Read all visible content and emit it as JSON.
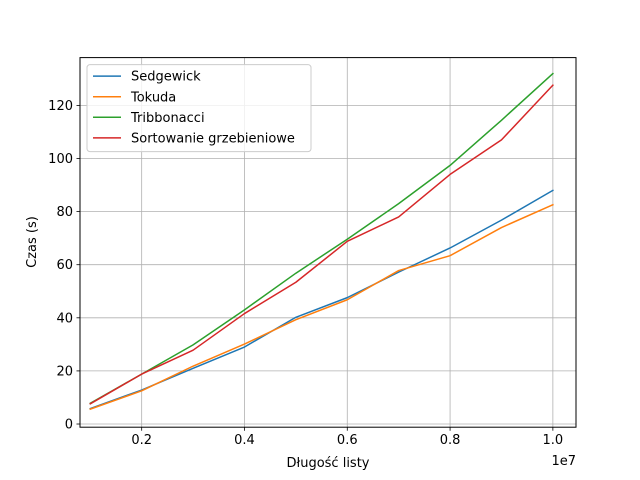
{
  "chart_data": {
    "type": "line",
    "xlabel": "Długość listy",
    "ylabel": "Czas (s)",
    "x_offset_label": "1e7",
    "xlim": [
      0.08,
      1.045
    ],
    "ylim": [
      -1.2,
      138
    ],
    "x_ticks": [
      0.2,
      0.4,
      0.6,
      0.8,
      1.0
    ],
    "x_tick_labels": [
      "0.2",
      "0.4",
      "0.6",
      "0.8",
      "1.0"
    ],
    "y_ticks": [
      0,
      20,
      40,
      60,
      80,
      100,
      120
    ],
    "y_tick_labels": [
      "0",
      "20",
      "40",
      "60",
      "80",
      "100",
      "120"
    ],
    "grid": true,
    "legend_position": "top-left",
    "x": [
      0.1,
      0.2,
      0.3,
      0.4,
      0.5,
      0.6,
      0.7,
      0.8,
      0.9,
      1.0
    ],
    "series": [
      {
        "name": "Sedgewick",
        "color": "#1f77b4",
        "values": [
          5.8,
          12.8,
          21.0,
          29.0,
          40.2,
          47.6,
          57.2,
          66.3,
          76.8,
          88.0
        ]
      },
      {
        "name": "Tokuda",
        "color": "#ff7f0e",
        "values": [
          5.6,
          12.5,
          21.8,
          30.1,
          39.3,
          46.8,
          57.8,
          63.4,
          74.0,
          82.6
        ]
      },
      {
        "name": "Tribbonacci",
        "color": "#2ca02c",
        "values": [
          7.8,
          18.8,
          29.8,
          43.0,
          56.8,
          69.6,
          83.0,
          97.4,
          114.4,
          132.0
        ]
      },
      {
        "name": "Sortowanie grzebieniowe",
        "color": "#d62728",
        "values": [
          7.6,
          18.8,
          27.8,
          41.6,
          53.4,
          68.8,
          78.0,
          94.0,
          107.0,
          127.6
        ]
      }
    ]
  }
}
